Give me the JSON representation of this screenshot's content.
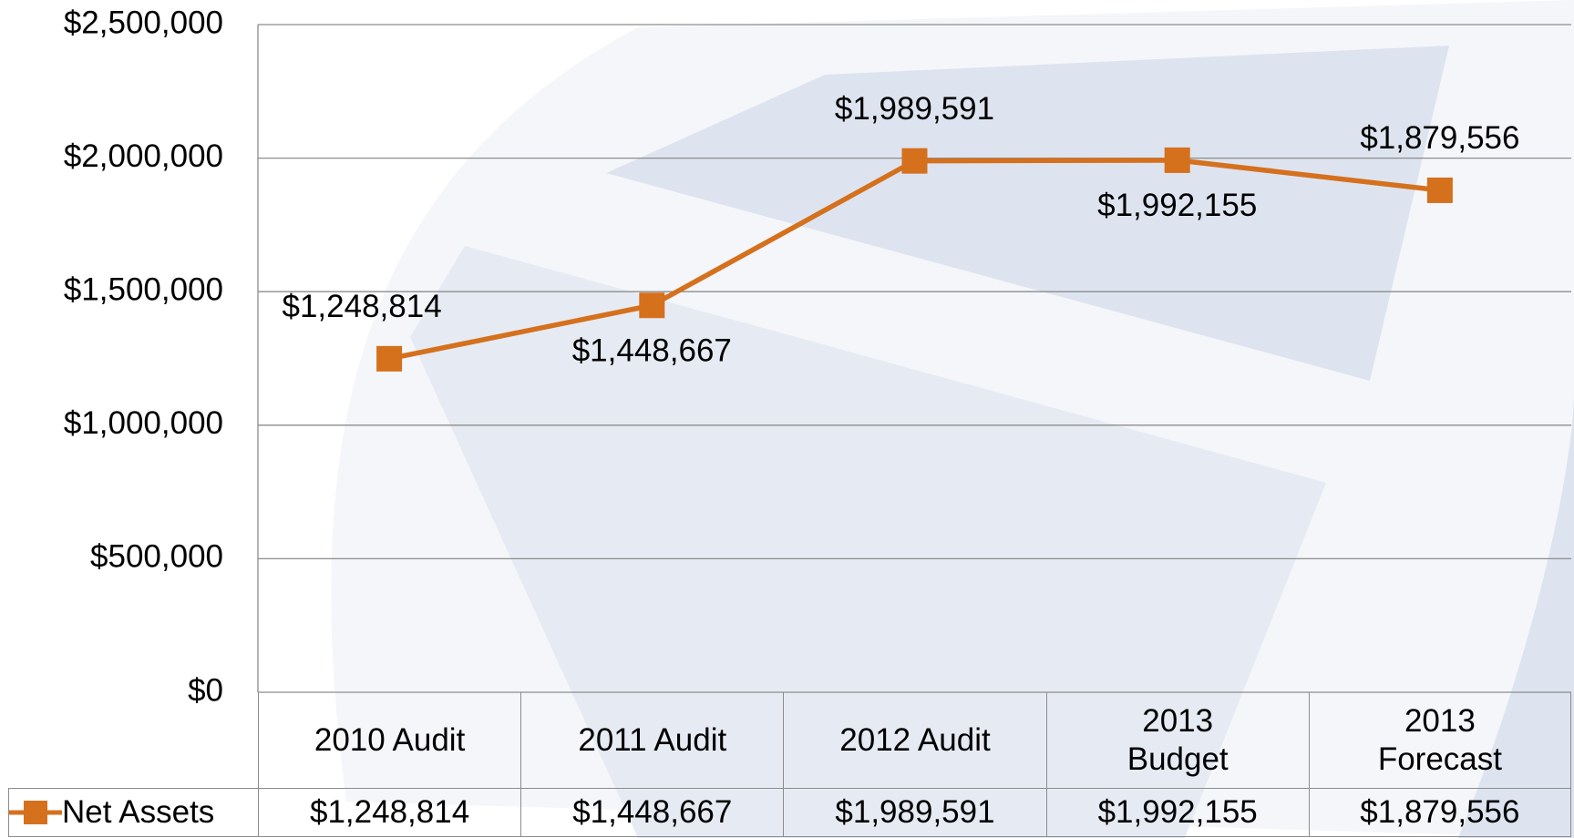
{
  "chart_data": {
    "type": "line",
    "categories": [
      "2010 Audit",
      "2011 Audit",
      "2012 Audit",
      "2013 Budget",
      "2013 Forecast"
    ],
    "series": [
      {
        "name": "Net Assets",
        "color": "#d5701d",
        "values": [
          1248814,
          1448667,
          1989591,
          1992155,
          1879556
        ],
        "value_labels": [
          "$1,248,814",
          "$1,448,667",
          "$1,989,591",
          "$1,992,155",
          "$1,879,556"
        ]
      }
    ],
    "ylim": [
      0,
      2500000
    ],
    "yticks": [
      {
        "value": 0,
        "label": "$0"
      },
      {
        "value": 500000,
        "label": "$500,000"
      },
      {
        "value": 1000000,
        "label": "$1,000,000"
      },
      {
        "value": 1500000,
        "label": "$1,500,000"
      },
      {
        "value": 2000000,
        "label": "$2,000,000"
      },
      {
        "value": 2500000,
        "label": "$2,500,000"
      }
    ],
    "grid": true
  }
}
